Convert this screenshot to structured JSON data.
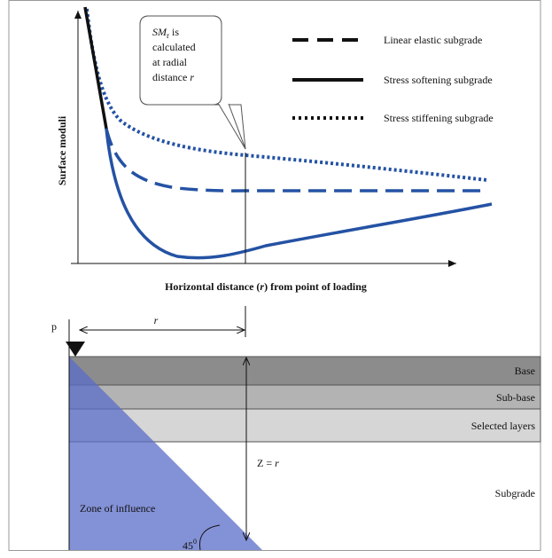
{
  "callout": {
    "symbol": "SM",
    "subscript": "r",
    "line1_rest": " is",
    "line2": "calculated",
    "line3": "at radial",
    "line4": "distance ",
    "line4_var": "r"
  },
  "legend": {
    "items": [
      "Linear elastic subgrade",
      "Stress softening subgrade",
      "Stress stiffening subgrade"
    ]
  },
  "axes": {
    "y_label": "Surface moduli",
    "x_label_parts": [
      "Horizontal distance (",
      "r",
      ") from point of loading"
    ]
  },
  "section": {
    "load": "p",
    "radius": "r",
    "depth_parts": [
      "Z = ",
      "r"
    ],
    "layers": [
      "Base",
      "Sub-base",
      "Selected layers",
      "Subgrade"
    ],
    "zone": "Zone of influence",
    "angle": "45",
    "angle_mark": "0"
  }
}
